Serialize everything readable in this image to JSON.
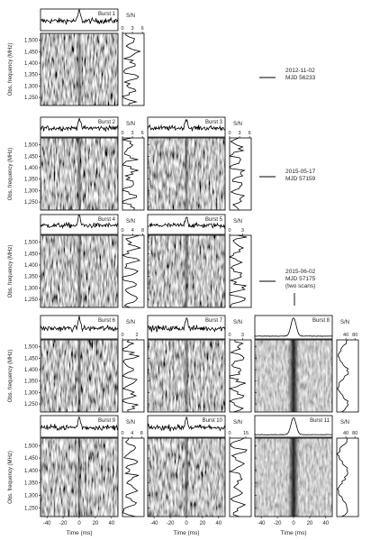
{
  "chart_data": {
    "type": "heatmap",
    "ylabel": "Obs. frequency (MHz)",
    "xlabel": "Time (ms)",
    "y_ticks": [
      1250,
      1300,
      1350,
      1400,
      1450,
      1500
    ],
    "y_tick_labels": [
      "1,250",
      "1,300",
      "1,350",
      "1,400",
      "1,450",
      "1,500"
    ],
    "ylim": [
      1215,
      1530
    ],
    "x_ticks": [
      -40,
      -20,
      0,
      20,
      40
    ],
    "xlim": [
      -48,
      48
    ],
    "sn_label": "S/N",
    "epochs": [
      {
        "date": "2012-11-02",
        "mjd": "MJD 56233",
        "note": ""
      },
      {
        "date": "2015-05-17",
        "mjd": "MJD 57159",
        "note": ""
      },
      {
        "date": "2015-06-02",
        "mjd": "MJD 57175",
        "note": "(two scans)"
      }
    ],
    "bursts": [
      {
        "label": "Burst 1",
        "sn_ticks": [
          0,
          3,
          6
        ],
        "sn_max": 6.5
      },
      {
        "label": "Burst 2",
        "sn_ticks": [
          0,
          3,
          6
        ],
        "sn_max": 6.5
      },
      {
        "label": "Burst 3",
        "sn_ticks": [
          0,
          3,
          6
        ],
        "sn_max": 6.5
      },
      {
        "label": "Burst 4",
        "sn_ticks": [
          0,
          4,
          8
        ],
        "sn_max": 8.5
      },
      {
        "label": "Burst 5",
        "sn_ticks": [
          0,
          3
        ],
        "sn_max": 5
      },
      {
        "label": "Burst 6",
        "sn_ticks": [
          0,
          2
        ],
        "sn_max": 3
      },
      {
        "label": "Burst 7",
        "sn_ticks": [
          0,
          3
        ],
        "sn_max": 5
      },
      {
        "label": "Burst 8",
        "sn_ticks": [
          40,
          80
        ],
        "sn_max": 95
      },
      {
        "label": "Burst 9",
        "sn_ticks": [
          0,
          4,
          8
        ],
        "sn_max": 9
      },
      {
        "label": "Burst 10",
        "sn_ticks": [
          0,
          15
        ],
        "sn_max": 20
      },
      {
        "label": "Burst 11",
        "sn_ticks": [
          40,
          80
        ],
        "sn_max": 95
      }
    ]
  }
}
